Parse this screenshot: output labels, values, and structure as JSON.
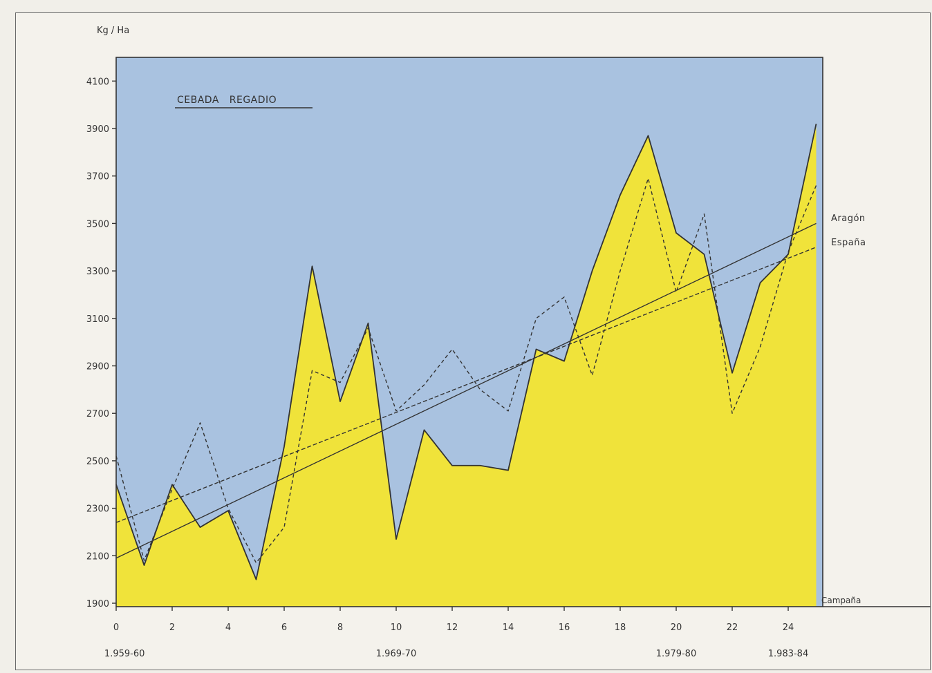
{
  "chart_data": {
    "type": "area",
    "title": "CEBADA   REGADIO",
    "ylabel": "Kg / Ha",
    "xlabel": "Campaña",
    "ylim": [
      1900,
      4150
    ],
    "xlim": [
      0,
      25
    ],
    "yticks": [
      1900,
      2100,
      2300,
      2500,
      2700,
      2900,
      3100,
      3300,
      3500,
      3700,
      3900,
      4100
    ],
    "xticks": [
      0,
      2,
      4,
      6,
      8,
      10,
      12,
      14,
      16,
      18,
      20,
      22,
      24
    ],
    "periods": [
      {
        "x": 0.3,
        "label": "1.959-60"
      },
      {
        "x": 10,
        "label": "1.969-70"
      },
      {
        "x": 20,
        "label": "1.979-80"
      },
      {
        "x": 24,
        "label": "1.983-84"
      }
    ],
    "x": [
      0,
      1,
      2,
      3,
      4,
      5,
      6,
      7,
      8,
      9,
      10,
      11,
      12,
      13,
      14,
      15,
      16,
      17,
      18,
      19,
      20,
      21,
      22,
      23,
      24,
      25
    ],
    "series": [
      {
        "name": "Aragón",
        "style": "solid-filled",
        "values": [
          2400,
          2060,
          2400,
          2220,
          2290,
          2000,
          2560,
          3320,
          2750,
          3080,
          2170,
          2630,
          2480,
          2480,
          2460,
          2970,
          2920,
          3300,
          3620,
          3870,
          3460,
          3370,
          2870,
          3250,
          3370,
          3920
        ]
      },
      {
        "name": "España",
        "style": "dashed",
        "values": [
          2520,
          2080,
          2380,
          2660,
          2300,
          2070,
          2220,
          2880,
          2830,
          3060,
          2710,
          2820,
          2970,
          2800,
          2710,
          3100,
          3190,
          2860,
          3300,
          3690,
          3210,
          3540,
          2700,
          2980,
          3380,
          3660
        ]
      }
    ],
    "trendlines": [
      {
        "name": "Aragón",
        "style": "solid",
        "start": [
          0,
          2090
        ],
        "end": [
          25,
          3500
        ]
      },
      {
        "name": "España",
        "style": "dashed",
        "start": [
          0,
          2240
        ],
        "end": [
          25,
          3400
        ]
      }
    ],
    "colors": {
      "background": "#a9c2e0",
      "fill": "#f0e33a",
      "line": "#333333",
      "axis": "#333333"
    }
  }
}
